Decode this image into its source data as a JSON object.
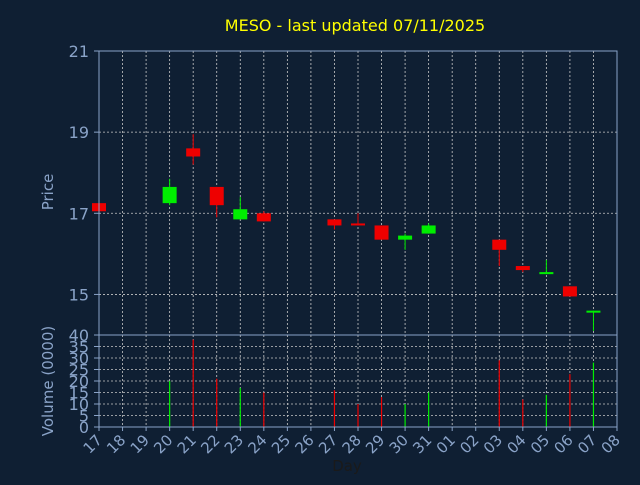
{
  "chart_data": {
    "type": "candlestick",
    "title": "MESO - last updated 07/11/2025",
    "xlabel": "Day",
    "colors": {
      "background": "#0f1f33",
      "axes": "#8aa3c8",
      "grid": "#c8c8c8",
      "title": "#ffff00",
      "up": "#00ee00",
      "down": "#ee0000"
    },
    "grid": true,
    "x_ticks": [
      "17",
      "18",
      "19",
      "20",
      "21",
      "22",
      "23",
      "24",
      "25",
      "26",
      "27",
      "28",
      "29",
      "30",
      "31",
      "01",
      "02",
      "03",
      "04",
      "05",
      "06",
      "07",
      "08"
    ],
    "price_panel": {
      "ylabel": "Price",
      "ylim": [
        14,
        21
      ],
      "yticks": [
        "21",
        "19",
        "17",
        "15"
      ]
    },
    "volume_panel": {
      "ylabel": "Volume (0000)",
      "ylim": [
        0,
        40
      ],
      "yticks": [
        "40",
        "35",
        "30",
        "25",
        "20",
        "15",
        "10",
        "5",
        "0"
      ]
    },
    "candles": [
      {
        "day": "17",
        "open": 17.25,
        "close": 17.05,
        "high": 17.25,
        "low": 17.05,
        "volume": 0
      },
      {
        "day": "20",
        "open": 17.25,
        "close": 17.65,
        "high": 17.85,
        "low": 17.2,
        "volume": 20
      },
      {
        "day": "21",
        "open": 18.6,
        "close": 18.4,
        "high": 18.95,
        "low": 18.2,
        "volume": 38
      },
      {
        "day": "22",
        "open": 17.65,
        "close": 17.2,
        "high": 17.65,
        "low": 16.9,
        "volume": 21
      },
      {
        "day": "23",
        "open": 16.85,
        "close": 17.1,
        "high": 17.4,
        "low": 16.85,
        "volume": 17
      },
      {
        "day": "24",
        "open": 17.0,
        "close": 16.8,
        "high": 17.05,
        "low": 16.8,
        "volume": 15
      },
      {
        "day": "27",
        "open": 16.85,
        "close": 16.7,
        "high": 16.85,
        "low": 16.6,
        "volume": 16
      },
      {
        "day": "28",
        "open": 16.75,
        "close": 16.7,
        "high": 17.0,
        "low": 16.7,
        "volume": 10
      },
      {
        "day": "29",
        "open": 16.7,
        "close": 16.35,
        "high": 16.7,
        "low": 16.35,
        "volume": 13
      },
      {
        "day": "30",
        "open": 16.35,
        "close": 16.45,
        "high": 16.5,
        "low": 16.1,
        "volume": 10
      },
      {
        "day": "31",
        "open": 16.5,
        "close": 16.7,
        "high": 16.75,
        "low": 16.5,
        "volume": 15
      },
      {
        "day": "03",
        "open": 16.35,
        "close": 16.1,
        "high": 16.35,
        "low": 15.7,
        "volume": 29
      },
      {
        "day": "04",
        "open": 15.7,
        "close": 15.6,
        "high": 15.7,
        "low": 15.55,
        "volume": 12
      },
      {
        "day": "05",
        "open": 15.5,
        "close": 15.55,
        "high": 15.85,
        "low": 15.5,
        "volume": 14
      },
      {
        "day": "06",
        "open": 15.2,
        "close": 14.95,
        "high": 15.2,
        "low": 14.95,
        "volume": 23
      },
      {
        "day": "07",
        "open": 14.6,
        "close": 14.6,
        "high": 14.6,
        "low": 14.1,
        "volume": 28
      }
    ]
  }
}
